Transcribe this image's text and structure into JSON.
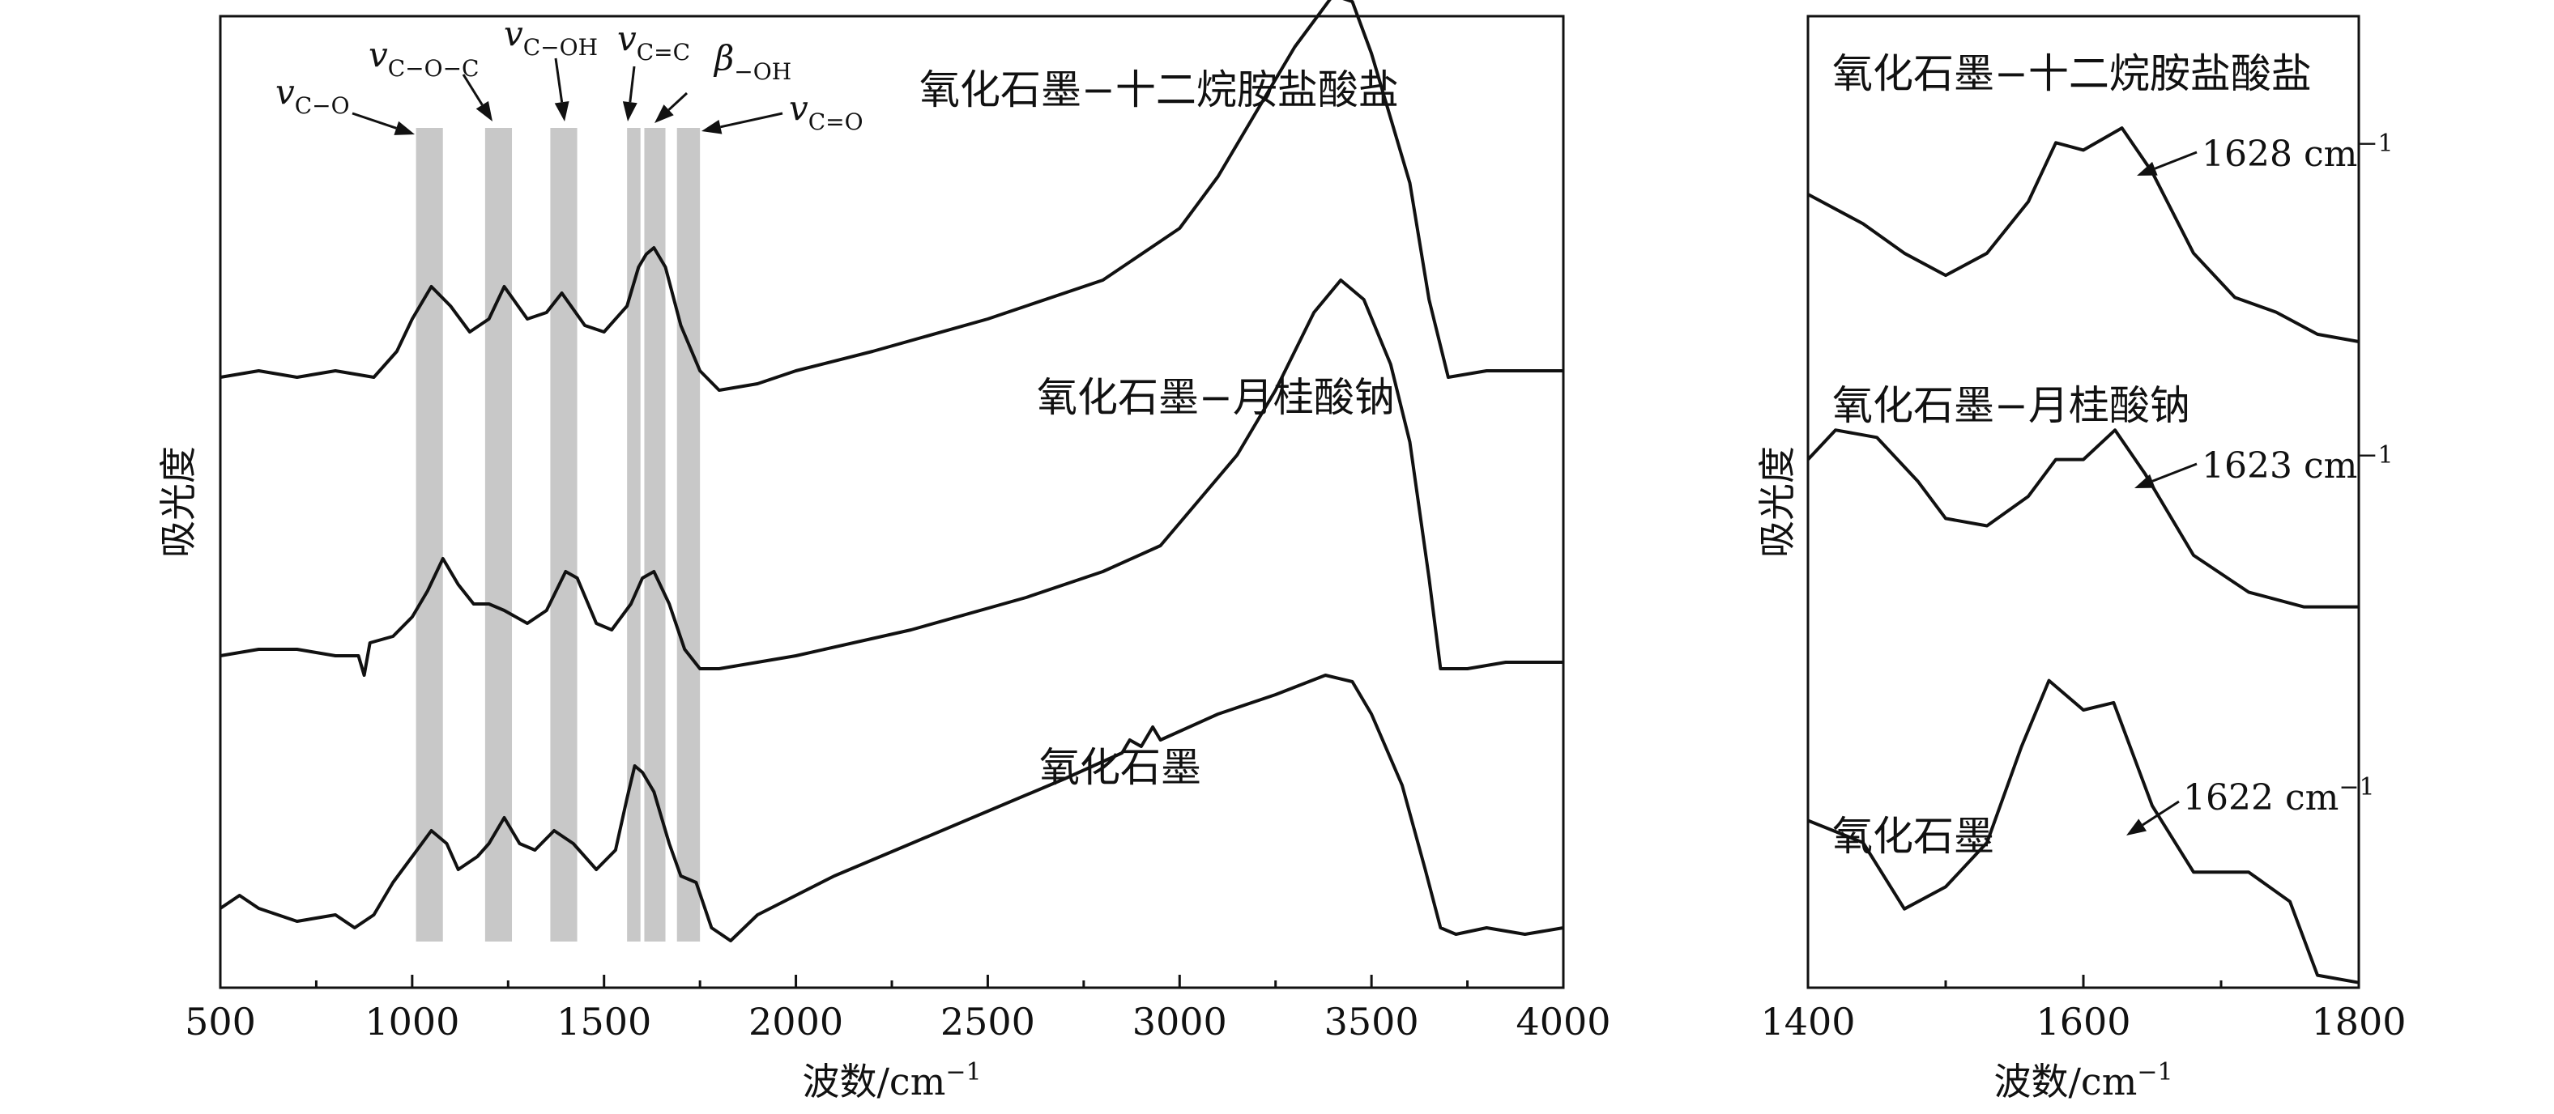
{
  "chart_data": [
    {
      "type": "line",
      "xlabel": "波数/cm",
      "xlabel_sup": "−1",
      "ylabel": "吸光度",
      "xlim": [
        500,
        4000
      ],
      "xticks": [
        500,
        1000,
        1500,
        2000,
        2500,
        3000,
        3500,
        4000
      ],
      "y_ticks_shown": false,
      "bands": [
        {
          "x0": 1010,
          "x1": 1080,
          "label": "v",
          "sub": "C−O"
        },
        {
          "x0": 1190,
          "x1": 1260,
          "label": "v",
          "sub": "C−O−C"
        },
        {
          "x0": 1360,
          "x1": 1430,
          "label": "v",
          "sub": "C−OH"
        },
        {
          "x0": 1560,
          "x1": 1595,
          "label": "v",
          "sub": "C=C"
        },
        {
          "x0": 1605,
          "x1": 1660,
          "label": "β",
          "sub": "−OH"
        },
        {
          "x0": 1690,
          "x1": 1750,
          "label": "v",
          "sub": "C=O"
        }
      ],
      "series": [
        {
          "name": "氧化石墨−十二烷胺盐酸盐",
          "points": [
            [
              500,
              0.88
            ],
            [
              600,
              0.89
            ],
            [
              700,
              0.88
            ],
            [
              800,
              0.89
            ],
            [
              900,
              0.88
            ],
            [
              960,
              0.92
            ],
            [
              1000,
              0.97
            ],
            [
              1050,
              1.02
            ],
            [
              1100,
              0.99
            ],
            [
              1150,
              0.95
            ],
            [
              1200,
              0.97
            ],
            [
              1240,
              1.02
            ],
            [
              1300,
              0.97
            ],
            [
              1350,
              0.98
            ],
            [
              1390,
              1.01
            ],
            [
              1450,
              0.96
            ],
            [
              1500,
              0.95
            ],
            [
              1560,
              0.99
            ],
            [
              1590,
              1.05
            ],
            [
              1610,
              1.07
            ],
            [
              1630,
              1.08
            ],
            [
              1660,
              1.05
            ],
            [
              1700,
              0.96
            ],
            [
              1750,
              0.89
            ],
            [
              1800,
              0.86
            ],
            [
              1900,
              0.87
            ],
            [
              2000,
              0.89
            ],
            [
              2200,
              0.92
            ],
            [
              2500,
              0.97
            ],
            [
              2800,
              1.03
            ],
            [
              3000,
              1.11
            ],
            [
              3100,
              1.19
            ],
            [
              3200,
              1.29
            ],
            [
              3300,
              1.39
            ],
            [
              3400,
              1.47
            ],
            [
              3450,
              1.46
            ],
            [
              3500,
              1.38
            ],
            [
              3600,
              1.18
            ],
            [
              3650,
              1.0
            ],
            [
              3700,
              0.88
            ],
            [
              3800,
              0.89
            ],
            [
              3900,
              0.89
            ],
            [
              4000,
              0.89
            ]
          ]
        },
        {
          "name": "氧化石墨−月桂酸钠",
          "points": [
            [
              500,
              0.45
            ],
            [
              600,
              0.46
            ],
            [
              700,
              0.46
            ],
            [
              800,
              0.45
            ],
            [
              860,
              0.45
            ],
            [
              875,
              0.42
            ],
            [
              890,
              0.47
            ],
            [
              950,
              0.48
            ],
            [
              1000,
              0.51
            ],
            [
              1040,
              0.55
            ],
            [
              1080,
              0.6
            ],
            [
              1120,
              0.56
            ],
            [
              1160,
              0.53
            ],
            [
              1200,
              0.53
            ],
            [
              1240,
              0.52
            ],
            [
              1300,
              0.5
            ],
            [
              1350,
              0.52
            ],
            [
              1400,
              0.58
            ],
            [
              1430,
              0.57
            ],
            [
              1480,
              0.5
            ],
            [
              1520,
              0.49
            ],
            [
              1570,
              0.53
            ],
            [
              1600,
              0.57
            ],
            [
              1630,
              0.58
            ],
            [
              1670,
              0.53
            ],
            [
              1710,
              0.46
            ],
            [
              1750,
              0.43
            ],
            [
              1800,
              0.43
            ],
            [
              2000,
              0.45
            ],
            [
              2300,
              0.49
            ],
            [
              2600,
              0.54
            ],
            [
              2800,
              0.58
            ],
            [
              2950,
              0.62
            ],
            [
              3050,
              0.69
            ],
            [
              3150,
              0.76
            ],
            [
              3250,
              0.86
            ],
            [
              3350,
              0.98
            ],
            [
              3420,
              1.03
            ],
            [
              3480,
              1.0
            ],
            [
              3550,
              0.9
            ],
            [
              3600,
              0.78
            ],
            [
              3650,
              0.57
            ],
            [
              3680,
              0.43
            ],
            [
              3750,
              0.43
            ],
            [
              3850,
              0.44
            ],
            [
              4000,
              0.44
            ]
          ]
        },
        {
          "name": "氧化石墨",
          "points": [
            [
              500,
              0.06
            ],
            [
              550,
              0.08
            ],
            [
              600,
              0.06
            ],
            [
              700,
              0.04
            ],
            [
              800,
              0.05
            ],
            [
              850,
              0.03
            ],
            [
              900,
              0.05
            ],
            [
              950,
              0.1
            ],
            [
              1000,
              0.14
            ],
            [
              1050,
              0.18
            ],
            [
              1090,
              0.16
            ],
            [
              1120,
              0.12
            ],
            [
              1170,
              0.14
            ],
            [
              1200,
              0.16
            ],
            [
              1240,
              0.2
            ],
            [
              1280,
              0.16
            ],
            [
              1320,
              0.15
            ],
            [
              1370,
              0.18
            ],
            [
              1420,
              0.16
            ],
            [
              1480,
              0.12
            ],
            [
              1530,
              0.15
            ],
            [
              1560,
              0.23
            ],
            [
              1580,
              0.28
            ],
            [
              1600,
              0.27
            ],
            [
              1630,
              0.24
            ],
            [
              1670,
              0.16
            ],
            [
              1700,
              0.11
            ],
            [
              1740,
              0.1
            ],
            [
              1780,
              0.03
            ],
            [
              1830,
              0.01
            ],
            [
              1900,
              0.05
            ],
            [
              2100,
              0.11
            ],
            [
              2300,
              0.16
            ],
            [
              2500,
              0.21
            ],
            [
              2700,
              0.26
            ],
            [
              2850,
              0.3
            ],
            [
              2870,
              0.32
            ],
            [
              2900,
              0.31
            ],
            [
              2930,
              0.34
            ],
            [
              2950,
              0.32
            ],
            [
              3100,
              0.36
            ],
            [
              3250,
              0.39
            ],
            [
              3380,
              0.42
            ],
            [
              3450,
              0.41
            ],
            [
              3500,
              0.36
            ],
            [
              3580,
              0.25
            ],
            [
              3640,
              0.12
            ],
            [
              3680,
              0.03
            ],
            [
              3720,
              0.02
            ],
            [
              3800,
              0.03
            ],
            [
              3900,
              0.02
            ],
            [
              4000,
              0.03
            ]
          ]
        }
      ]
    },
    {
      "type": "line",
      "xlabel": "波数/cm",
      "xlabel_sup": "−1",
      "ylabel": "吸光度",
      "xlim": [
        1400,
        1800
      ],
      "xticks": [
        1400,
        1600,
        1800
      ],
      "y_ticks_shown": false,
      "series": [
        {
          "name": "氧化石墨−十二烷胺盐酸盐",
          "peak_label": "1628 cm",
          "peak_sup": "−1",
          "peak_x": 1628,
          "points": [
            [
              1400,
              1.0
            ],
            [
              1440,
              0.96
            ],
            [
              1470,
              0.92
            ],
            [
              1500,
              0.89
            ],
            [
              1530,
              0.92
            ],
            [
              1560,
              0.99
            ],
            [
              1580,
              1.07
            ],
            [
              1600,
              1.06
            ],
            [
              1628,
              1.09
            ],
            [
              1650,
              1.03
            ],
            [
              1680,
              0.92
            ],
            [
              1710,
              0.86
            ],
            [
              1740,
              0.84
            ],
            [
              1770,
              0.81
            ],
            [
              1800,
              0.8
            ]
          ]
        },
        {
          "name": "氧化石墨−月桂酸钠",
          "peak_label": "1623 cm",
          "peak_sup": "−1",
          "peak_x": 1623,
          "points": [
            [
              1400,
              0.64
            ],
            [
              1420,
              0.68
            ],
            [
              1450,
              0.67
            ],
            [
              1480,
              0.61
            ],
            [
              1500,
              0.56
            ],
            [
              1530,
              0.55
            ],
            [
              1560,
              0.59
            ],
            [
              1580,
              0.64
            ],
            [
              1600,
              0.64
            ],
            [
              1623,
              0.68
            ],
            [
              1645,
              0.62
            ],
            [
              1680,
              0.51
            ],
            [
              1720,
              0.46
            ],
            [
              1760,
              0.44
            ],
            [
              1800,
              0.44
            ]
          ]
        },
        {
          "name": "氧化石墨",
          "peak_label": "1622 cm",
          "peak_sup": "−1",
          "peak_x": 1622,
          "points": [
            [
              1400,
              0.15
            ],
            [
              1440,
              0.12
            ],
            [
              1470,
              0.03
            ],
            [
              1500,
              0.06
            ],
            [
              1530,
              0.12
            ],
            [
              1555,
              0.25
            ],
            [
              1575,
              0.34
            ],
            [
              1600,
              0.3
            ],
            [
              1622,
              0.31
            ],
            [
              1650,
              0.17
            ],
            [
              1680,
              0.08
            ],
            [
              1720,
              0.08
            ],
            [
              1750,
              0.04
            ],
            [
              1770,
              -0.06
            ],
            [
              1800,
              -0.07
            ]
          ]
        }
      ]
    }
  ]
}
